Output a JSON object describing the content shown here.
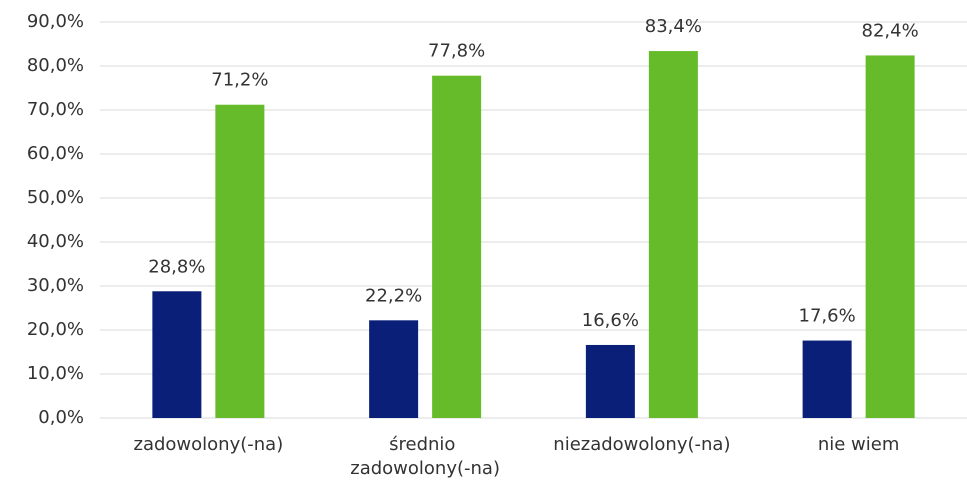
{
  "chart_data": {
    "type": "bar",
    "categories": [
      "zadowolony(-na)",
      "średnio zadowolony(-na)",
      "niezadowolony(-na)",
      "nie wiem"
    ],
    "series": [
      {
        "color": "#0a1f78",
        "values": [
          28.8,
          22.2,
          16.6,
          17.6
        ],
        "value_labels": [
          "28,8%",
          "22,2%",
          "16,6%",
          "17,6%"
        ]
      },
      {
        "color": "#66bb2a",
        "values": [
          71.2,
          77.8,
          83.4,
          82.4
        ],
        "value_labels": [
          "71,2%",
          "77,8%",
          "83,4%",
          "82,4%"
        ]
      }
    ],
    "ylim": [
      0,
      90
    ],
    "yticks": [
      {
        "value": 0,
        "label": "0,0%"
      },
      {
        "value": 10,
        "label": "10,0%"
      },
      {
        "value": 20,
        "label": "20,0%"
      },
      {
        "value": 30,
        "label": "30,0%"
      },
      {
        "value": 40,
        "label": "40,0%"
      },
      {
        "value": 50,
        "label": "50,0%"
      },
      {
        "value": 60,
        "label": "60,0%"
      },
      {
        "value": 70,
        "label": "70,0%"
      },
      {
        "value": 80,
        "label": "80,0%"
      },
      {
        "value": 90,
        "label": "90,0%"
      }
    ],
    "grid": true
  }
}
